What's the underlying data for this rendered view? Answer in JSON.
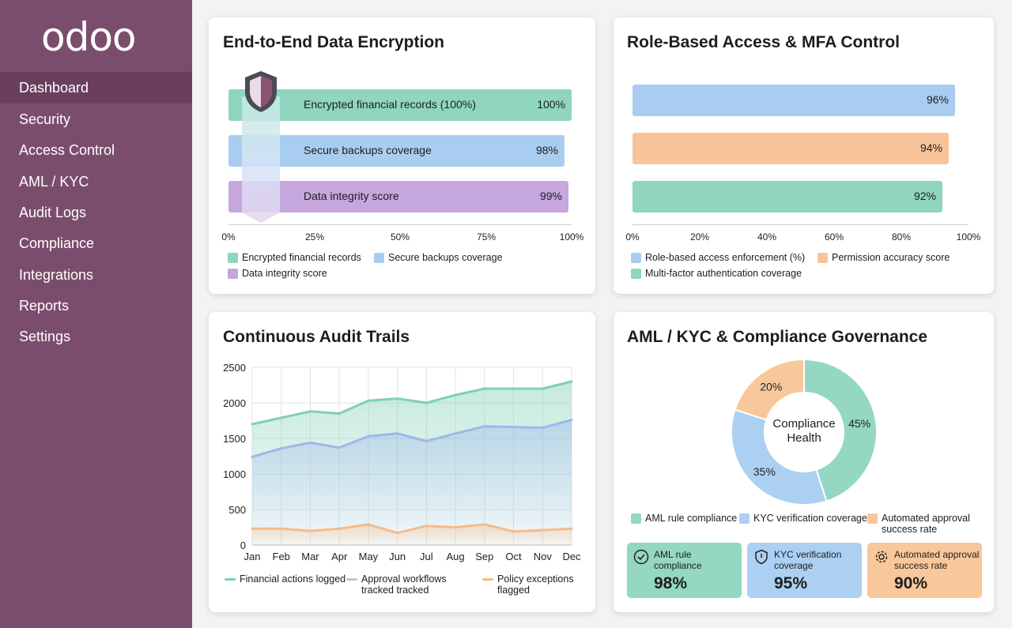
{
  "app": {
    "logo": "odoo"
  },
  "sidebar": {
    "items": [
      {
        "label": "Dashboard",
        "active": true
      },
      {
        "label": "Security"
      },
      {
        "label": "Access Control"
      },
      {
        "label": "AML / KYC"
      },
      {
        "label": "Audit Logs"
      },
      {
        "label": "Compliance"
      },
      {
        "label": "Integrations"
      },
      {
        "label": "Reports"
      },
      {
        "label": "Settings"
      }
    ]
  },
  "encryption": {
    "title": "End-to-End Data Encryption",
    "icon": "shield-icon",
    "chart_data": {
      "type": "bar",
      "orientation": "horizontal",
      "categories": [
        "Encrypted financial records (100%)",
        "Secure backups coverage",
        "Data integrity score"
      ],
      "values": [
        100,
        98,
        99
      ],
      "value_labels": [
        "100%",
        "98%",
        "99%"
      ],
      "colors": [
        "#8fd5c0",
        "#a9cdf0",
        "#c5a6dd"
      ],
      "xlim": [
        0,
        100
      ],
      "xticks": [
        "0%",
        "25%",
        "50%",
        "75%",
        "100%"
      ],
      "legend": [
        "Encrypted financial records",
        "Secure backups coverage",
        "Data integrity score"
      ],
      "legend_position": "bottom"
    }
  },
  "access": {
    "title": "Role-Based Access & MFA Control",
    "chart_data": {
      "type": "bar",
      "orientation": "horizontal",
      "values": [
        96,
        94,
        92
      ],
      "value_labels": [
        "96%",
        "94%",
        "92%"
      ],
      "colors": [
        "#a9cdf0",
        "#f9c49a",
        "#8fd5c0"
      ],
      "xlim": [
        0,
        100
      ],
      "xticks": [
        "0%",
        "20%",
        "40%",
        "60%",
        "80%",
        "100%"
      ],
      "legend": [
        "Role-based access enforcement (%)",
        "Permission accuracy score",
        "Multi-factor authentication coverage"
      ],
      "legend_position": "bottom"
    }
  },
  "audit": {
    "title": "Continuous Audit Trails",
    "chart_data": {
      "type": "area",
      "categories": [
        "Jan",
        "Feb",
        "Mar",
        "Apr",
        "May",
        "Jun",
        "Jul",
        "Aug",
        "Sep",
        "Oct",
        "Nov",
        "Dec"
      ],
      "ylim": [
        0,
        2500
      ],
      "yticks": [
        "0",
        "500",
        "1000",
        "1500",
        "2000",
        "2500"
      ],
      "grid": true,
      "legend_position": "bottom",
      "series": [
        {
          "name": "Financial actions logged",
          "color": "#7fd0b4",
          "values": [
            1700,
            1790,
            1880,
            1850,
            2030,
            2060,
            2000,
            2110,
            2200,
            2200,
            2200,
            2300
          ]
        },
        {
          "name": "Approval workflows tracked tracked",
          "color": "#9db8ea",
          "values": [
            1240,
            1360,
            1440,
            1370,
            1530,
            1570,
            1460,
            1570,
            1670,
            1660,
            1650,
            1760
          ]
        },
        {
          "name": "Policy exceptions flagged",
          "color": "#f5bb8a",
          "values": [
            230,
            230,
            200,
            230,
            290,
            170,
            270,
            250,
            290,
            190,
            210,
            230
          ]
        }
      ]
    }
  },
  "aml": {
    "title": "AML / KYC & Compliance Governance",
    "chart_data": {
      "type": "pie",
      "donut": true,
      "center_label": "Compliance Health",
      "labels": [
        "AML rule compliance",
        "KYC verification coverage",
        "Automated approval success rate"
      ],
      "values": [
        45,
        35,
        20
      ],
      "value_labels": [
        "45%",
        "35%",
        "20%"
      ],
      "colors": [
        "#94d7c2",
        "#acd0f2",
        "#f9c79c"
      ],
      "legend_position": "bottom"
    },
    "kpis": [
      {
        "label": "AML rule compliance",
        "value": "98%",
        "icon": "check-circle-icon",
        "color": "#94d7c2"
      },
      {
        "label": "KYC verification coverage",
        "value": "95%",
        "icon": "shield-icon",
        "color": "#acd0f2"
      },
      {
        "label": "Automated approval success rate",
        "value": "90%",
        "icon": "gear-icon",
        "color": "#f9c79c"
      }
    ]
  }
}
